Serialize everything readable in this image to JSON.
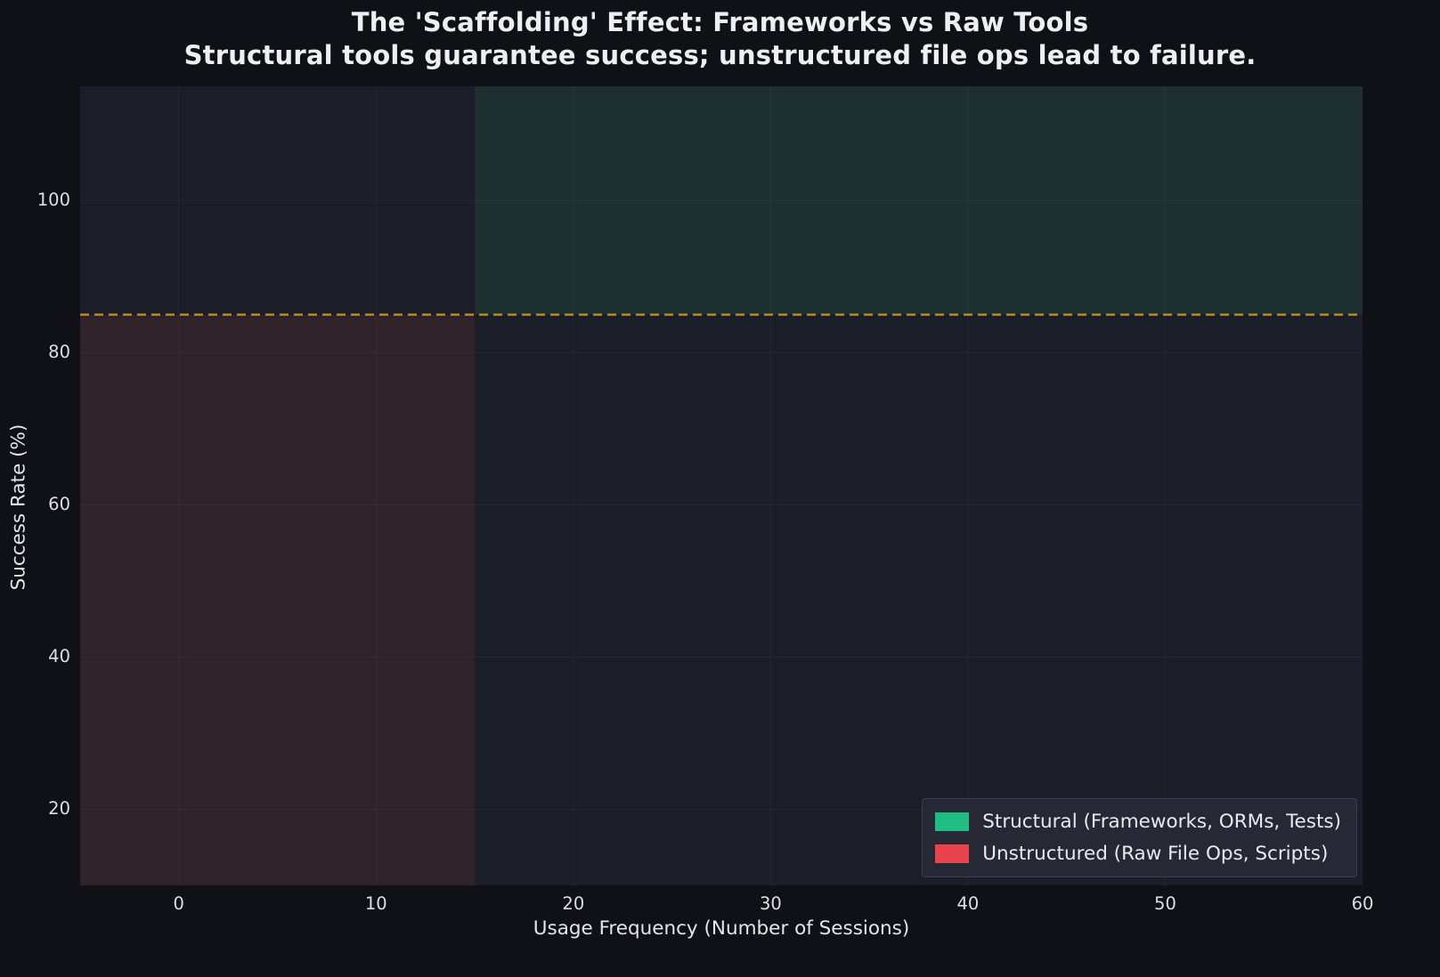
{
  "chart_data": {
    "type": "scatter",
    "title": "The 'Scaffolding' Effect: Frameworks vs Raw Tools",
    "subtitle": "Structural tools guarantee success; unstructured file ops lead to failure.",
    "xlabel": "Usage Frequency (Number of Sessions)",
    "ylabel": "Success Rate (%)",
    "xlim": [
      -5,
      60
    ],
    "ylim": [
      10,
      115
    ],
    "xticks": [
      0,
      10,
      20,
      30,
      40,
      50,
      60
    ],
    "yticks": [
      20,
      40,
      60,
      80,
      100
    ],
    "grid": true,
    "legend_position": "lower right",
    "threshold_line": {
      "y": 85,
      "color": "#b3892c",
      "style": "dashed",
      "width": 2.5
    },
    "regions": [
      {
        "name": "structural-success-zone",
        "x0": 15,
        "x1": 60,
        "y0": 85,
        "y1": 115,
        "color": "#2ecc71",
        "alpha": 0.1
      },
      {
        "name": "unstructured-failure-zone",
        "x0": -5,
        "x1": 15,
        "y0": 10,
        "y1": 85,
        "color": "#e74c3c",
        "alpha": 0.1
      }
    ],
    "legend_entries": [
      {
        "label": "Structural (Frameworks, ORMs, Tests)",
        "color": "#1fbd84"
      },
      {
        "label": "Unstructured (Raw File Ops, Scripts)",
        "color": "#e8434b"
      }
    ],
    "colors": {
      "background": "#101117",
      "plot_background": "#1b1d28",
      "grid": "#ffffff",
      "grid_opacity": 0.045,
      "text": "#e8eaee"
    }
  }
}
